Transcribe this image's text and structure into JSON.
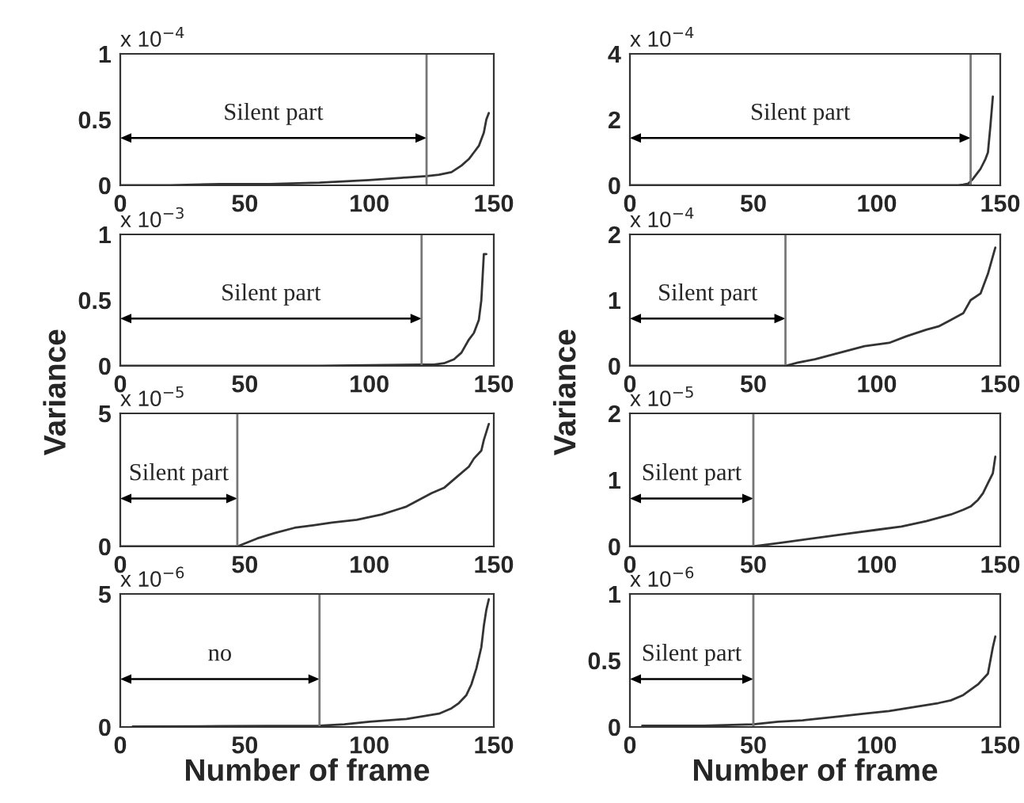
{
  "chart_data": [
    {
      "type": "line",
      "color": "#333333",
      "xlim": [
        0,
        150
      ],
      "xticks": [
        0,
        50,
        100,
        150
      ],
      "ylim": [
        0,
        1
      ],
      "yticks": [
        0,
        0.5,
        1
      ],
      "x": [
        0,
        20,
        40,
        60,
        80,
        100,
        115,
        123,
        128,
        133,
        137,
        140,
        142,
        144,
        146,
        147,
        148
      ],
      "values": [
        0,
        0,
        0.01,
        0.01,
        0.02,
        0.04,
        0.06,
        0.07,
        0.08,
        0.1,
        0.15,
        0.2,
        0.25,
        0.3,
        0.4,
        0.5,
        0.55
      ],
      "ref_lines": [
        {
          "axis": "x",
          "value": 123,
          "color": "#777777"
        }
      ],
      "annotations": [
        "x 10$^{−4}$",
        "Silent part"
      ]
    },
    {
      "type": "line",
      "color": "#333333",
      "xlim": [
        0,
        150
      ],
      "xticks": [
        0,
        50,
        100,
        150
      ],
      "ylim": [
        0,
        1
      ],
      "yticks": [
        0,
        0.5,
        1
      ],
      "ylabel": "Variance",
      "x": [
        0,
        40,
        80,
        121,
        126,
        130,
        134,
        137,
        140,
        142,
        143,
        144,
        145,
        146,
        147
      ],
      "values": [
        0.0,
        0.0,
        0.0,
        0.01,
        0.01,
        0.02,
        0.05,
        0.1,
        0.2,
        0.25,
        0.3,
        0.35,
        0.5,
        0.85,
        0.85
      ],
      "ref_lines": [
        {
          "axis": "x",
          "value": 121,
          "color": "#777777"
        }
      ],
      "annotations": [
        "x 10$^{−3}$",
        "Silent part"
      ]
    },
    {
      "type": "line",
      "color": "#333333",
      "xlim": [
        0,
        150
      ],
      "xticks": [
        0,
        50,
        100,
        150
      ],
      "ylim": [
        0,
        5
      ],
      "yticks": [
        0,
        5
      ],
      "x": [
        0,
        20,
        47,
        55,
        62,
        70,
        78,
        85,
        95,
        105,
        115,
        125,
        130,
        135,
        140,
        142,
        145,
        146,
        148
      ],
      "values": [
        0.0,
        0.0,
        0.0,
        0.3,
        0.5,
        0.7,
        0.8,
        0.9,
        1.0,
        1.2,
        1.5,
        2.0,
        2.2,
        2.6,
        3.0,
        3.3,
        3.6,
        4.0,
        4.6
      ],
      "ref_lines": [
        {
          "axis": "x",
          "value": 47,
          "color": "#777777"
        }
      ],
      "annotations": [
        "x 10$^{−5}$",
        "Silent part"
      ]
    },
    {
      "type": "line",
      "color": "#333333",
      "xlim": [
        0,
        150
      ],
      "xticks": [
        0,
        50,
        100,
        150
      ],
      "ylim": [
        0,
        5
      ],
      "yticks": [
        0,
        5
      ],
      "xlabel": "Number of frame",
      "x": [
        5,
        40,
        80,
        90,
        100,
        115,
        128,
        133,
        136,
        139,
        141,
        143,
        145,
        146,
        147,
        148
      ],
      "values": [
        0.02,
        0.03,
        0.05,
        0.1,
        0.2,
        0.3,
        0.5,
        0.7,
        0.9,
        1.2,
        1.6,
        2.2,
        3.0,
        3.8,
        4.4,
        4.8
      ],
      "ref_lines": [
        {
          "axis": "x",
          "value": 80,
          "color": "#777777"
        }
      ],
      "annotations": [
        "x 10$^{−6}$",
        "no"
      ]
    },
    {
      "type": "line",
      "color": "#333333",
      "xlim": [
        0,
        150
      ],
      "xticks": [
        0,
        50,
        100,
        150
      ],
      "ylim": [
        0,
        4
      ],
      "yticks": [
        0,
        2,
        4
      ],
      "x": [
        0,
        60,
        100,
        133,
        135,
        137,
        139,
        141,
        142,
        144,
        145,
        146,
        147
      ],
      "values": [
        0.0,
        0.0,
        0.0,
        0.0,
        0.02,
        0.05,
        0.2,
        0.4,
        0.5,
        0.8,
        1.0,
        1.8,
        2.7
      ],
      "ref_lines": [
        {
          "axis": "x",
          "value": 138,
          "color": "#777777"
        }
      ],
      "annotations": [
        "x 10$^{−4}$",
        "Silent part"
      ]
    },
    {
      "type": "line",
      "color": "#333333",
      "xlim": [
        0,
        150
      ],
      "xticks": [
        0,
        50,
        100,
        150
      ],
      "ylim": [
        0,
        2
      ],
      "yticks": [
        0,
        1,
        2
      ],
      "ylabel": "Variance",
      "x": [
        0,
        30,
        63,
        68,
        75,
        85,
        95,
        105,
        112,
        120,
        125,
        130,
        135,
        138,
        142,
        145,
        148
      ],
      "values": [
        0.0,
        0.0,
        0.0,
        0.05,
        0.1,
        0.2,
        0.3,
        0.35,
        0.45,
        0.55,
        0.6,
        0.7,
        0.8,
        1.0,
        1.1,
        1.4,
        1.8
      ],
      "ref_lines": [
        {
          "axis": "x",
          "value": 63,
          "color": "#777777"
        }
      ],
      "annotations": [
        "x 10$^{−4}$",
        "Silent part"
      ]
    },
    {
      "type": "line",
      "color": "#333333",
      "xlim": [
        0,
        150
      ],
      "xticks": [
        0,
        50,
        100,
        150
      ],
      "ylim": [
        0,
        2
      ],
      "yticks": [
        0,
        1,
        2
      ],
      "x": [
        0,
        30,
        50,
        60,
        70,
        80,
        90,
        100,
        110,
        120,
        130,
        135,
        138,
        141,
        143,
        145,
        147,
        148
      ],
      "values": [
        0.0,
        0.0,
        0.0,
        0.05,
        0.1,
        0.15,
        0.2,
        0.25,
        0.3,
        0.38,
        0.48,
        0.55,
        0.6,
        0.7,
        0.8,
        0.95,
        1.1,
        1.35
      ],
      "ref_lines": [
        {
          "axis": "x",
          "value": 50,
          "color": "#777777"
        }
      ],
      "annotations": [
        "x 10$^{−5}$",
        "Silent part"
      ]
    },
    {
      "type": "line",
      "color": "#333333",
      "xlim": [
        0,
        150
      ],
      "xticks": [
        0,
        50,
        100,
        150
      ],
      "ylim": [
        0,
        1
      ],
      "yticks": [
        0,
        0.5,
        1
      ],
      "xlabel": "Number of frame",
      "x": [
        5,
        30,
        50,
        60,
        70,
        85,
        95,
        105,
        115,
        125,
        130,
        135,
        138,
        141,
        143,
        145,
        146,
        147,
        148
      ],
      "values": [
        0.01,
        0.01,
        0.02,
        0.04,
        0.05,
        0.08,
        0.1,
        0.12,
        0.15,
        0.18,
        0.2,
        0.24,
        0.28,
        0.32,
        0.36,
        0.4,
        0.5,
        0.6,
        0.68
      ],
      "ref_lines": [
        {
          "axis": "x",
          "value": 50,
          "color": "#777777"
        }
      ],
      "annotations": [
        "x 10$^{−6}$",
        "Silent part"
      ]
    }
  ]
}
